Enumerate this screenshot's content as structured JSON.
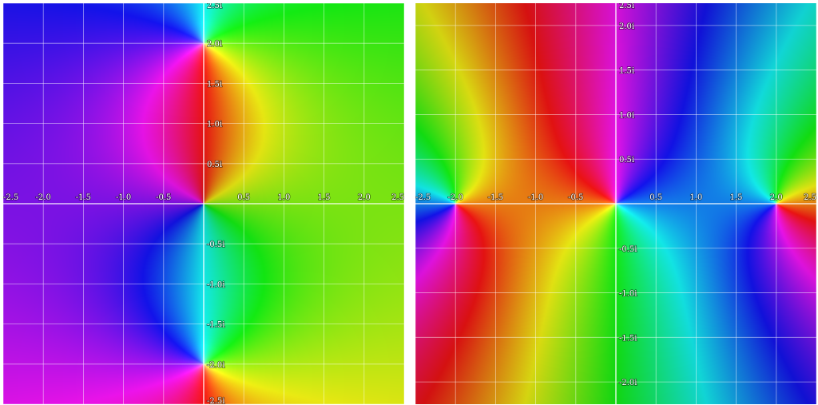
{
  "chart_data": [
    {
      "type": "heatmap",
      "title": "",
      "xlabel": "",
      "ylabel": "",
      "xlim": [
        -2.5,
        2.5
      ],
      "ylim": [
        -2.5,
        2.5
      ],
      "grid": true,
      "grid_step": 0.5,
      "x_ticks": [
        "-2.5",
        "-2.0",
        "-1.5",
        "-1.0",
        "-0.5",
        "0.5",
        "1.0",
        "1.5",
        "2.0",
        "2.5"
      ],
      "y_ticks": [
        "2.5i",
        "2.0i",
        "1.5i",
        "1.0i",
        "0.5i",
        "-0.5i",
        "-1.0i",
        "-1.5i",
        "-2.0i",
        "-2.5i"
      ],
      "zeros": [
        [
          0,
          2
        ],
        [
          0,
          -2
        ]
      ],
      "poles": [
        [
          0,
          0
        ]
      ],
      "phase_offset_deg": 90
    },
    {
      "type": "heatmap",
      "title": "",
      "xlabel": "",
      "ylabel": "",
      "xlim": [
        -2.5,
        2.5
      ],
      "ylim": [
        -2.25,
        2.25
      ],
      "grid": true,
      "grid_step": 0.5,
      "x_ticks": [
        "-2.5",
        "-2.0",
        "-1.5",
        "-1.0",
        "-0.5",
        "0.5",
        "1.0",
        "1.5",
        "2.0",
        "2.5"
      ],
      "y_ticks": [
        "2.5i",
        "2.0i",
        "1.5i",
        "1.0i",
        "0.5i",
        "-0.5i",
        "-1.0i",
        "-1.5i",
        "-2.0i"
      ],
      "zeros": [
        [
          -2,
          0
        ],
        [
          0,
          0
        ],
        [
          2,
          0
        ]
      ],
      "poles": [],
      "phase_offset_deg": 30
    }
  ]
}
